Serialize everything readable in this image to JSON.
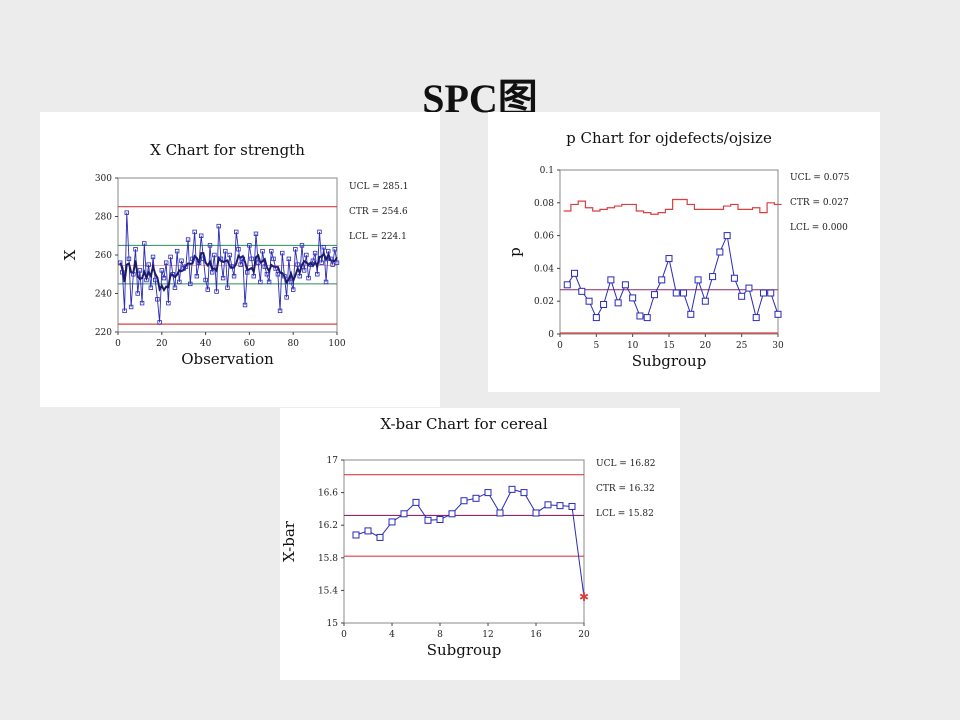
{
  "slide": {
    "title": "SPC图"
  },
  "colors": {
    "background": "#ececec",
    "panel": "#ffffff",
    "data": "#2a2ab8",
    "limit": "#d84040",
    "center": "#2e8b57",
    "mean": "#1a1a66"
  },
  "chart_data": [
    {
      "type": "line",
      "title": "X Chart for strength",
      "xlabel": "Observation",
      "ylabel": "X",
      "xlim": [
        0,
        100
      ],
      "ylim": [
        220,
        300
      ],
      "xticks": [
        "0",
        "20",
        "40",
        "60",
        "80",
        "100"
      ],
      "yticks": [
        "220",
        "240",
        "260",
        "280",
        "300"
      ],
      "limits": {
        "ucl": 285.1,
        "ctr": 254.6,
        "lcl": 224.1
      },
      "zone_lines": [
        245,
        265
      ],
      "stats": [
        "UCL = 285.1",
        "CTR = 254.6",
        "LCL = 224.1"
      ],
      "values": [
        256,
        251,
        231,
        282,
        258,
        233,
        250,
        263,
        240,
        252,
        235,
        266,
        247,
        255,
        243,
        259,
        247,
        237,
        225,
        252,
        248,
        256,
        235,
        259,
        250,
        243,
        262,
        246,
        257,
        253,
        254,
        268,
        245,
        258,
        272,
        249,
        256,
        270,
        258,
        247,
        242,
        265,
        251,
        260,
        241,
        275,
        258,
        248,
        262,
        243,
        260,
        254,
        249,
        272,
        263,
        255,
        258,
        234,
        251,
        265,
        258,
        249,
        271,
        256,
        246,
        262,
        254,
        250,
        246,
        262,
        258,
        253,
        250,
        231,
        261,
        249,
        238,
        258,
        246,
        242,
        263,
        255,
        249,
        265,
        252,
        260,
        248,
        255,
        257,
        261,
        250,
        272,
        256,
        264,
        246,
        262,
        258,
        255,
        263,
        256
      ]
    },
    {
      "type": "line",
      "title": "p Chart for ojdefects/ojsize",
      "xlabel": "Subgroup",
      "ylabel": "p",
      "xlim": [
        0,
        30
      ],
      "ylim": [
        0,
        0.1
      ],
      "xticks": [
        "0",
        "5",
        "10",
        "15",
        "20",
        "25",
        "30"
      ],
      "yticks": [
        "0",
        "0.02",
        "0.04",
        "0.06",
        "0.08",
        "0.1"
      ],
      "limits": {
        "ctr": 0.027,
        "lcl": 0.0
      },
      "ucl_steps": [
        0.075,
        0.079,
        0.081,
        0.077,
        0.075,
        0.076,
        0.077,
        0.078,
        0.079,
        0.079,
        0.075,
        0.074,
        0.073,
        0.074,
        0.076,
        0.082,
        0.082,
        0.079,
        0.076,
        0.076,
        0.076,
        0.076,
        0.078,
        0.079,
        0.076,
        0.076,
        0.077,
        0.074,
        0.08,
        0.079
      ],
      "stats": [
        "UCL = 0.075",
        "CTR = 0.027",
        "LCL = 0.000"
      ],
      "values": [
        0.03,
        0.037,
        0.026,
        0.02,
        0.01,
        0.018,
        0.033,
        0.019,
        0.03,
        0.022,
        0.011,
        0.01,
        0.024,
        0.033,
        0.046,
        0.025,
        0.025,
        0.012,
        0.033,
        0.02,
        0.035,
        0.05,
        0.06,
        0.034,
        0.023,
        0.028,
        0.01,
        0.025,
        0.025,
        0.012
      ]
    },
    {
      "type": "line",
      "title": "X-bar Chart for cereal",
      "xlabel": "Subgroup",
      "ylabel": "X-bar",
      "xlim": [
        0,
        20
      ],
      "ylim": [
        15.0,
        17.0
      ],
      "xticks": [
        "0",
        "4",
        "8",
        "12",
        "16",
        "20"
      ],
      "yticks": [
        "15",
        "15.4",
        "15.8",
        "16.2",
        "16.6",
        "17"
      ],
      "limits": {
        "ucl": 16.82,
        "ctr": 16.32,
        "lcl": 15.82
      },
      "stats": [
        "UCL = 16.82",
        "CTR = 16.32",
        "LCL = 15.82"
      ],
      "x": [
        1,
        2,
        3,
        4,
        5,
        6,
        7,
        8,
        9,
        10,
        11,
        12,
        13,
        14,
        15,
        16,
        17,
        18,
        19,
        20
      ],
      "values": [
        16.08,
        16.13,
        16.05,
        16.24,
        16.34,
        16.48,
        16.26,
        16.27,
        16.34,
        16.5,
        16.53,
        16.6,
        16.35,
        16.64,
        16.6,
        16.35,
        16.45,
        16.44,
        16.43,
        15.32
      ]
    }
  ]
}
